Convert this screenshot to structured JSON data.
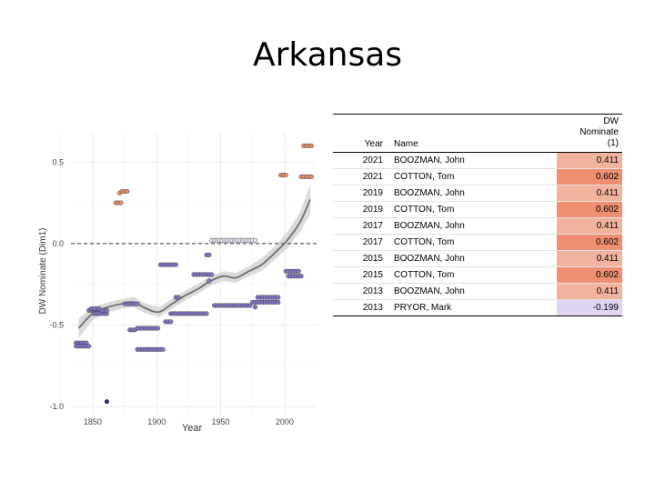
{
  "slide": {
    "title": "Arkansas"
  },
  "table": {
    "headers": {
      "year": "Year",
      "name": "Name",
      "dw": "DW\nNominate\n(1)"
    },
    "rows": [
      {
        "year": "2021",
        "name": "BOOZMAN, John",
        "dw": "0.411",
        "color": "#f2b39e"
      },
      {
        "year": "2021",
        "name": "COTTON, Tom",
        "dw": "0.602",
        "color": "#ef8e70"
      },
      {
        "year": "2019",
        "name": "BOOZMAN, John",
        "dw": "0.411",
        "color": "#f2b39e"
      },
      {
        "year": "2019",
        "name": "COTTON, Tom",
        "dw": "0.602",
        "color": "#ef8e70"
      },
      {
        "year": "2017",
        "name": "BOOZMAN, John",
        "dw": "0.411",
        "color": "#f2b39e"
      },
      {
        "year": "2017",
        "name": "COTTON, Tom",
        "dw": "0.602",
        "color": "#ef8e70"
      },
      {
        "year": "2015",
        "name": "BOOZMAN, John",
        "dw": "0.411",
        "color": "#f2b39e"
      },
      {
        "year": "2015",
        "name": "COTTON, Tom",
        "dw": "0.602",
        "color": "#ef8e70"
      },
      {
        "year": "2013",
        "name": "BOOZMAN, John",
        "dw": "0.411",
        "color": "#f2b39e"
      },
      {
        "year": "2013",
        "name": "PRYOR, Mark",
        "dw": "-0.199",
        "color": "#e0d4f5"
      }
    ]
  },
  "chart_data": {
    "type": "scatter",
    "title": "",
    "xlabel": "Year",
    "ylabel": "DW Nominate (Dim1)",
    "xlim": [
      1833,
      2025
    ],
    "ylim": [
      -1.05,
      0.68
    ],
    "x_ticks": [
      1850,
      1900,
      1950,
      2000
    ],
    "x_tick_labels": [
      "1850",
      "1900",
      "1950",
      "2000"
    ],
    "y_ticks": [
      -1.0,
      -0.5,
      0.0,
      0.5
    ],
    "y_tick_labels": [
      "-1.0",
      "-0.5",
      "0.0",
      "0.5"
    ],
    "grid": true,
    "reference_line": {
      "y": 0.0,
      "style": "dashed"
    },
    "colors": {
      "negative": "#8477c8",
      "positive": "#e9936f",
      "extreme": "#1f2a8a",
      "trend": "#6e6e6e",
      "band": "#d6d6d6"
    },
    "points": [
      {
        "x": 1837,
        "y": -0.61
      },
      {
        "x": 1839,
        "y": -0.61
      },
      {
        "x": 1841,
        "y": -0.61
      },
      {
        "x": 1843,
        "y": -0.61
      },
      {
        "x": 1845,
        "y": -0.61
      },
      {
        "x": 1837,
        "y": -0.63
      },
      {
        "x": 1839,
        "y": -0.63
      },
      {
        "x": 1841,
        "y": -0.63
      },
      {
        "x": 1843,
        "y": -0.63
      },
      {
        "x": 1845,
        "y": -0.63
      },
      {
        "x": 1847,
        "y": -0.63
      },
      {
        "x": 1847,
        "y": -0.41
      },
      {
        "x": 1849,
        "y": -0.41
      },
      {
        "x": 1851,
        "y": -0.41
      },
      {
        "x": 1853,
        "y": -0.41
      },
      {
        "x": 1855,
        "y": -0.41
      },
      {
        "x": 1849,
        "y": -0.4
      },
      {
        "x": 1851,
        "y": -0.4
      },
      {
        "x": 1853,
        "y": -0.4
      },
      {
        "x": 1855,
        "y": -0.4
      },
      {
        "x": 1851,
        "y": -0.43
      },
      {
        "x": 1853,
        "y": -0.43
      },
      {
        "x": 1855,
        "y": -0.43
      },
      {
        "x": 1857,
        "y": -0.43
      },
      {
        "x": 1859,
        "y": -0.43
      },
      {
        "x": 1861,
        "y": -0.43
      },
      {
        "x": 1857,
        "y": -0.41
      },
      {
        "x": 1859,
        "y": -0.41
      },
      {
        "x": 1861,
        "y": -0.41
      },
      {
        "x": 1861,
        "y": -0.97
      },
      {
        "x": 1868,
        "y": 0.25
      },
      {
        "x": 1870,
        "y": 0.25
      },
      {
        "x": 1872,
        "y": 0.25
      },
      {
        "x": 1871,
        "y": 0.31
      },
      {
        "x": 1873,
        "y": 0.32
      },
      {
        "x": 1875,
        "y": 0.32
      },
      {
        "x": 1877,
        "y": 0.32
      },
      {
        "x": 1875,
        "y": -0.37
      },
      {
        "x": 1877,
        "y": -0.37
      },
      {
        "x": 1879,
        "y": -0.37
      },
      {
        "x": 1881,
        "y": -0.37
      },
      {
        "x": 1883,
        "y": -0.37
      },
      {
        "x": 1885,
        "y": -0.37
      },
      {
        "x": 1879,
        "y": -0.53
      },
      {
        "x": 1881,
        "y": -0.53
      },
      {
        "x": 1883,
        "y": -0.53
      },
      {
        "x": 1885,
        "y": -0.52
      },
      {
        "x": 1887,
        "y": -0.52
      },
      {
        "x": 1889,
        "y": -0.52
      },
      {
        "x": 1891,
        "y": -0.52
      },
      {
        "x": 1893,
        "y": -0.52
      },
      {
        "x": 1895,
        "y": -0.52
      },
      {
        "x": 1897,
        "y": -0.52
      },
      {
        "x": 1899,
        "y": -0.52
      },
      {
        "x": 1901,
        "y": -0.52
      },
      {
        "x": 1885,
        "y": -0.65
      },
      {
        "x": 1887,
        "y": -0.65
      },
      {
        "x": 1889,
        "y": -0.65
      },
      {
        "x": 1891,
        "y": -0.65
      },
      {
        "x": 1893,
        "y": -0.65
      },
      {
        "x": 1895,
        "y": -0.65
      },
      {
        "x": 1897,
        "y": -0.65
      },
      {
        "x": 1899,
        "y": -0.65
      },
      {
        "x": 1901,
        "y": -0.65
      },
      {
        "x": 1903,
        "y": -0.65
      },
      {
        "x": 1905,
        "y": -0.65
      },
      {
        "x": 1903,
        "y": -0.13
      },
      {
        "x": 1905,
        "y": -0.13
      },
      {
        "x": 1907,
        "y": -0.13
      },
      {
        "x": 1909,
        "y": -0.13
      },
      {
        "x": 1911,
        "y": -0.13
      },
      {
        "x": 1913,
        "y": -0.13
      },
      {
        "x": 1915,
        "y": -0.13
      },
      {
        "x": 1907,
        "y": -0.48
      },
      {
        "x": 1909,
        "y": -0.48
      },
      {
        "x": 1911,
        "y": -0.48
      },
      {
        "x": 1911,
        "y": -0.43
      },
      {
        "x": 1913,
        "y": -0.43
      },
      {
        "x": 1915,
        "y": -0.43
      },
      {
        "x": 1917,
        "y": -0.43
      },
      {
        "x": 1919,
        "y": -0.43
      },
      {
        "x": 1921,
        "y": -0.43
      },
      {
        "x": 1923,
        "y": -0.43
      },
      {
        "x": 1925,
        "y": -0.43
      },
      {
        "x": 1927,
        "y": -0.43
      },
      {
        "x": 1929,
        "y": -0.43
      },
      {
        "x": 1931,
        "y": -0.43
      },
      {
        "x": 1933,
        "y": -0.43
      },
      {
        "x": 1935,
        "y": -0.43
      },
      {
        "x": 1937,
        "y": -0.43
      },
      {
        "x": 1939,
        "y": -0.43
      },
      {
        "x": 1915,
        "y": -0.33
      },
      {
        "x": 1917,
        "y": -0.33
      },
      {
        "x": 1929,
        "y": -0.19
      },
      {
        "x": 1931,
        "y": -0.19
      },
      {
        "x": 1933,
        "y": -0.19
      },
      {
        "x": 1935,
        "y": -0.19
      },
      {
        "x": 1937,
        "y": -0.19
      },
      {
        "x": 1939,
        "y": -0.19
      },
      {
        "x": 1941,
        "y": -0.19
      },
      {
        "x": 1943,
        "y": -0.19
      },
      {
        "x": 1939,
        "y": -0.07
      },
      {
        "x": 1941,
        "y": -0.07
      },
      {
        "x": 1941,
        "y": -0.23
      },
      {
        "x": 1943,
        "y": 0.02
      },
      {
        "x": 1945,
        "y": 0.02
      },
      {
        "x": 1947,
        "y": 0.02
      },
      {
        "x": 1949,
        "y": 0.02
      },
      {
        "x": 1951,
        "y": 0.02
      },
      {
        "x": 1953,
        "y": 0.02
      },
      {
        "x": 1955,
        "y": 0.02
      },
      {
        "x": 1957,
        "y": 0.02
      },
      {
        "x": 1959,
        "y": 0.02
      },
      {
        "x": 1961,
        "y": 0.02
      },
      {
        "x": 1963,
        "y": 0.02
      },
      {
        "x": 1965,
        "y": 0.02
      },
      {
        "x": 1967,
        "y": 0.02
      },
      {
        "x": 1969,
        "y": 0.02
      },
      {
        "x": 1971,
        "y": 0.02
      },
      {
        "x": 1973,
        "y": 0.02
      },
      {
        "x": 1975,
        "y": 0.02
      },
      {
        "x": 1977,
        "y": 0.02
      },
      {
        "x": 1945,
        "y": -0.38
      },
      {
        "x": 1947,
        "y": -0.38
      },
      {
        "x": 1949,
        "y": -0.38
      },
      {
        "x": 1951,
        "y": -0.38
      },
      {
        "x": 1953,
        "y": -0.38
      },
      {
        "x": 1955,
        "y": -0.38
      },
      {
        "x": 1957,
        "y": -0.38
      },
      {
        "x": 1959,
        "y": -0.38
      },
      {
        "x": 1961,
        "y": -0.38
      },
      {
        "x": 1963,
        "y": -0.38
      },
      {
        "x": 1965,
        "y": -0.38
      },
      {
        "x": 1967,
        "y": -0.38
      },
      {
        "x": 1969,
        "y": -0.38
      },
      {
        "x": 1971,
        "y": -0.38
      },
      {
        "x": 1973,
        "y": -0.38
      },
      {
        "x": 1975,
        "y": -0.36
      },
      {
        "x": 1977,
        "y": -0.36
      },
      {
        "x": 1979,
        "y": -0.36
      },
      {
        "x": 1981,
        "y": -0.36
      },
      {
        "x": 1983,
        "y": -0.36
      },
      {
        "x": 1985,
        "y": -0.36
      },
      {
        "x": 1987,
        "y": -0.36
      },
      {
        "x": 1989,
        "y": -0.36
      },
      {
        "x": 1991,
        "y": -0.36
      },
      {
        "x": 1993,
        "y": -0.36
      },
      {
        "x": 1995,
        "y": -0.36
      },
      {
        "x": 1977,
        "y": -0.39
      },
      {
        "x": 1979,
        "y": -0.33
      },
      {
        "x": 1981,
        "y": -0.33
      },
      {
        "x": 1983,
        "y": -0.33
      },
      {
        "x": 1985,
        "y": -0.33
      },
      {
        "x": 1987,
        "y": -0.33
      },
      {
        "x": 1989,
        "y": -0.33
      },
      {
        "x": 1991,
        "y": -0.33
      },
      {
        "x": 1993,
        "y": -0.33
      },
      {
        "x": 1995,
        "y": -0.33
      },
      {
        "x": 1997,
        "y": 0.42
      },
      {
        "x": 1999,
        "y": 0.42
      },
      {
        "x": 2001,
        "y": 0.42
      },
      {
        "x": 2001,
        "y": -0.17
      },
      {
        "x": 2003,
        "y": -0.17
      },
      {
        "x": 2005,
        "y": -0.17
      },
      {
        "x": 2007,
        "y": -0.17
      },
      {
        "x": 2009,
        "y": -0.17
      },
      {
        "x": 2011,
        "y": -0.17
      },
      {
        "x": 2003,
        "y": -0.2
      },
      {
        "x": 2005,
        "y": -0.2
      },
      {
        "x": 2007,
        "y": -0.2
      },
      {
        "x": 2009,
        "y": -0.2
      },
      {
        "x": 2011,
        "y": -0.2
      },
      {
        "x": 2013,
        "y": -0.2
      },
      {
        "x": 2013,
        "y": 0.41
      },
      {
        "x": 2015,
        "y": 0.41
      },
      {
        "x": 2017,
        "y": 0.41
      },
      {
        "x": 2019,
        "y": 0.41
      },
      {
        "x": 2021,
        "y": 0.41
      },
      {
        "x": 2015,
        "y": 0.6
      },
      {
        "x": 2017,
        "y": 0.6
      },
      {
        "x": 2019,
        "y": 0.6
      },
      {
        "x": 2021,
        "y": 0.6
      }
    ],
    "trend": [
      {
        "x": 1839,
        "y": -0.52,
        "lo": -0.58,
        "hi": -0.46
      },
      {
        "x": 1850,
        "y": -0.43,
        "lo": -0.47,
        "hi": -0.39
      },
      {
        "x": 1862,
        "y": -0.39,
        "lo": -0.42,
        "hi": -0.36
      },
      {
        "x": 1873,
        "y": -0.37,
        "lo": -0.4,
        "hi": -0.34
      },
      {
        "x": 1882,
        "y": -0.36,
        "lo": -0.39,
        "hi": -0.33
      },
      {
        "x": 1892,
        "y": -0.4,
        "lo": -0.43,
        "hi": -0.37
      },
      {
        "x": 1902,
        "y": -0.42,
        "lo": -0.45,
        "hi": -0.39
      },
      {
        "x": 1912,
        "y": -0.37,
        "lo": -0.4,
        "hi": -0.34
      },
      {
        "x": 1922,
        "y": -0.32,
        "lo": -0.35,
        "hi": -0.29
      },
      {
        "x": 1932,
        "y": -0.28,
        "lo": -0.31,
        "hi": -0.25
      },
      {
        "x": 1942,
        "y": -0.23,
        "lo": -0.26,
        "hi": -0.2
      },
      {
        "x": 1952,
        "y": -0.2,
        "lo": -0.23,
        "hi": -0.17
      },
      {
        "x": 1962,
        "y": -0.21,
        "lo": -0.24,
        "hi": -0.18
      },
      {
        "x": 1972,
        "y": -0.17,
        "lo": -0.2,
        "hi": -0.14
      },
      {
        "x": 1982,
        "y": -0.13,
        "lo": -0.17,
        "hi": -0.09
      },
      {
        "x": 1992,
        "y": -0.06,
        "lo": -0.1,
        "hi": -0.02
      },
      {
        "x": 2002,
        "y": 0.02,
        "lo": -0.03,
        "hi": 0.07
      },
      {
        "x": 2012,
        "y": 0.13,
        "lo": 0.07,
        "hi": 0.19
      },
      {
        "x": 2020,
        "y": 0.27,
        "lo": 0.18,
        "hi": 0.36
      }
    ]
  }
}
